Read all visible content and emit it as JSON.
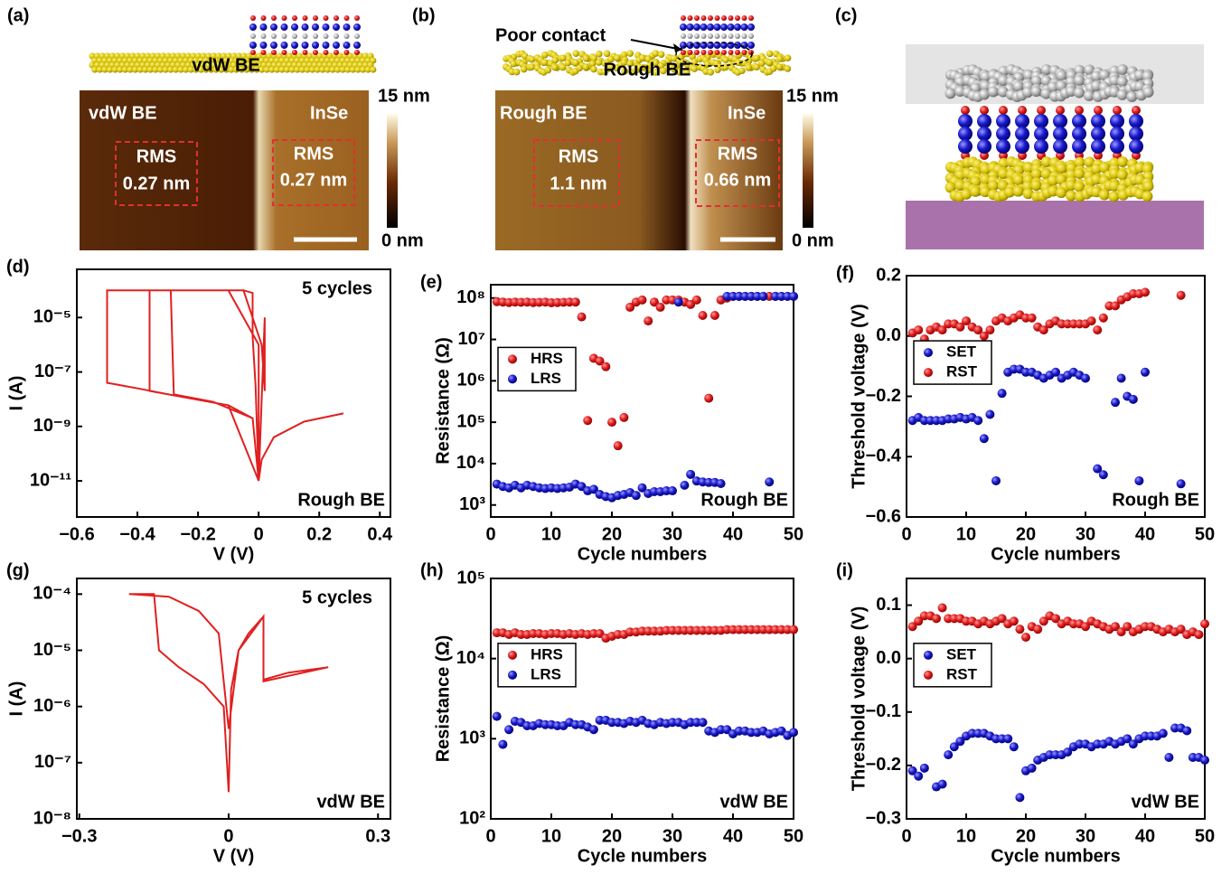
{
  "images": [
    {
      "panel_label": "(a)",
      "schematic_label": "vdW BE",
      "left_label": "vdW BE",
      "right_label": "InSe",
      "left_rms": "RMS",
      "left_rms_value": "0.27 nm",
      "right_rms": "RMS",
      "right_rms_value": "0.27 nm",
      "colorbar_max": "15 nm",
      "colorbar_min": "0 nm"
    },
    {
      "panel_label": "(b)",
      "annotation": "Poor contact",
      "schematic_label": "Rough BE",
      "left_label": "Rough BE",
      "right_label": "InSe",
      "left_rms": "RMS",
      "left_rms_value": "1.1 nm",
      "right_rms": "RMS",
      "right_rms_value": "0.66 nm",
      "colorbar_max": "15 nm",
      "colorbar_min": "0 nm"
    },
    {
      "panel_label": "(c)"
    }
  ],
  "chart_data": [
    {
      "type": "line",
      "panel_label": "(d)",
      "note_top": "5 cycles",
      "note_bottom": "Rough BE",
      "xlabel": "V (V)",
      "ylabel": "I (A)",
      "color": "#e02020",
      "yscale": "log",
      "x": [
        0.28,
        0.15,
        0.05,
        0.01,
        0,
        -0.02,
        -0.1,
        -0.25,
        -0.4,
        -0.5,
        -0.5,
        -0.2,
        -0.05,
        -0.02,
        -0.02,
        -0.01,
        0,
        -0.02,
        -0.15,
        -0.28,
        -0.29,
        -0.05,
        0.01,
        0.02,
        0.02,
        0,
        -0.1,
        -0.25,
        -0.36,
        -0.36,
        -0.1,
        0,
        0
      ],
      "values": [
        3e-09,
        1.5e-09,
        4e-10,
        6e-11,
        1e-11,
        2e-09,
        6e-09,
        1.2e-08,
        2.5e-08,
        4e-08,
        0.0001,
        0.0001,
        0.0001,
        8e-05,
        2e-06,
        3e-08,
        1e-11,
        2e-09,
        8e-09,
        1.5e-08,
        0.0001,
        0.0001,
        1e-06,
        2e-08,
        1e-05,
        1e-11,
        6e-09,
        1.2e-08,
        2e-08,
        0.0001,
        0.0001,
        1e-06,
        1e-11
      ],
      "xlim": [
        -0.6,
        0.435
      ],
      "xticks": [
        {
          "value": -0.6,
          "label": "−0.6"
        },
        {
          "value": -0.4,
          "label": "−0.4"
        },
        {
          "value": -0.2,
          "label": "−0.2"
        },
        0,
        0.2,
        0.4
      ],
      "ylim": [
        4.7e-13,
        0.00059
      ],
      "yticks": [
        {
          "value": 1e-11,
          "label": "10⁻¹¹"
        },
        {
          "value": 1e-09,
          "label": "10⁻⁹"
        },
        {
          "value": 1e-07,
          "label": "10⁻⁷"
        },
        {
          "value": 1e-05,
          "label": "10⁻⁵"
        }
      ]
    },
    {
      "type": "scatter",
      "panel_label": "(e)",
      "note_bottom": "Rough BE",
      "xlabel": "Cycle numbers",
      "ylabel": "Resistance (Ω)",
      "yscale": "log",
      "legend": "upper left",
      "x": [
        1,
        2,
        3,
        4,
        5,
        6,
        7,
        8,
        9,
        10,
        11,
        12,
        13,
        14,
        15,
        16,
        17,
        18,
        19,
        20,
        21,
        22,
        23,
        24,
        25,
        26,
        27,
        28,
        29,
        30,
        31,
        32,
        33,
        34,
        35,
        36,
        37,
        38,
        39,
        40,
        41,
        42,
        43,
        44,
        45,
        46,
        47,
        48,
        49,
        50
      ],
      "series": [
        {
          "name": "HRS",
          "color": "#e02020",
          "values": [
            82000000.0,
            80000000.0,
            78000000.0,
            80000000.0,
            79000000.0,
            80000000.0,
            78000000.0,
            79000000.0,
            80000000.0,
            77000000.0,
            78000000.0,
            79000000.0,
            80000000.0,
            80000000.0,
            35000000.0,
            110000.0,
            3500000.0,
            3000000.0,
            2200000.0,
            100000.0,
            27000.0,
            130000.0,
            60000000.0,
            80000000.0,
            90000000.0,
            28000000.0,
            80000000.0,
            60000000.0,
            90000000.0,
            90000000.0,
            90000000.0,
            80000000.0,
            70000000.0,
            90000000.0,
            38000000.0,
            380000.0,
            38000000.0,
            90000000.0,
            100000000.0,
            110000000.0,
            110000000.0,
            110000000.0,
            110000000.0,
            110000000.0,
            110000000.0,
            110000000.0,
            110000000.0,
            110000000.0,
            110000000.0,
            110000000.0
          ]
        },
        {
          "name": "LRS",
          "color": "#1a1acc",
          "values": [
            3200,
            2800,
            2600,
            3000,
            2600,
            3000,
            2800,
            2600,
            2500,
            2600,
            2500,
            2600,
            2700,
            3200,
            2800,
            2200,
            2400,
            1800,
            1600,
            1500,
            1700,
            1800,
            2000,
            1700,
            2600,
            1900,
            2100,
            2100,
            2200,
            2200,
            80000000.0,
            3000,
            5500,
            3800,
            3600,
            3500,
            3500,
            3300,
            110000000.0,
            110000000.0,
            110000000.0,
            110000000.0,
            110000000.0,
            110000000.0,
            110000000.0,
            3600,
            110000000.0,
            110000000.0,
            110000000.0,
            110000000.0
          ]
        }
      ],
      "xlim": [
        0,
        50
      ],
      "xticks": [
        0,
        10,
        20,
        30,
        40,
        50
      ],
      "ylim": [
        513,
        210000000.0
      ],
      "yticks": [
        {
          "value": 1000,
          "label": "10³"
        },
        {
          "value": 10000,
          "label": "10⁴"
        },
        {
          "value": 100000,
          "label": "10⁵"
        },
        {
          "value": 1000000,
          "label": "10⁶"
        },
        {
          "value": 10000000,
          "label": "10⁷"
        },
        {
          "value": 100000000,
          "label": "10⁸"
        }
      ]
    },
    {
      "type": "scatter",
      "panel_label": "(f)",
      "note_bottom": "Rough BE",
      "xlabel": "Cycle numbers",
      "ylabel": "Threshold voltage (V)",
      "legend": "upper left",
      "x": [
        1,
        2,
        3,
        4,
        5,
        6,
        7,
        8,
        9,
        10,
        11,
        12,
        13,
        14,
        15,
        16,
        17,
        18,
        19,
        20,
        21,
        22,
        23,
        24,
        25,
        26,
        27,
        28,
        29,
        30,
        31,
        32,
        33,
        34,
        35,
        36,
        37,
        38,
        39,
        40,
        41,
        42,
        43,
        44,
        45,
        46,
        47,
        48,
        49,
        50
      ],
      "series": [
        {
          "name": "SET",
          "color": "#1a1acc",
          "values": [
            -0.28,
            -0.27,
            -0.28,
            -0.28,
            -0.28,
            -0.28,
            -0.275,
            -0.275,
            -0.27,
            -0.275,
            -0.27,
            -0.28,
            -0.34,
            -0.26,
            -0.48,
            -0.19,
            -0.12,
            -0.11,
            -0.11,
            -0.12,
            -0.12,
            -0.13,
            -0.14,
            -0.13,
            -0.12,
            -0.14,
            -0.13,
            -0.12,
            -0.13,
            -0.14,
            null,
            -0.44,
            -0.46,
            null,
            -0.22,
            -0.14,
            -0.2,
            -0.21,
            -0.48,
            -0.12,
            null,
            null,
            null,
            null,
            null,
            -0.49,
            null,
            null,
            null,
            null
          ]
        },
        {
          "name": "RST",
          "color": "#e02020",
          "values": [
            0.01,
            0.02,
            -0.01,
            0.02,
            0.03,
            0.02,
            0.04,
            0.04,
            0.03,
            0.05,
            0.03,
            0.02,
            0,
            0.02,
            0.05,
            0.06,
            0.05,
            0.06,
            0.07,
            0.06,
            0.06,
            0.03,
            0.02,
            0.04,
            0.05,
            0.04,
            0.04,
            0.04,
            0.04,
            0.04,
            0.05,
            0.02,
            0.06,
            0.1,
            0.1,
            0.12,
            0.13,
            0.14,
            0.14,
            0.145,
            null,
            null,
            null,
            null,
            null,
            0.135,
            null,
            null,
            null,
            null
          ]
        }
      ],
      "xlim": [
        0,
        50
      ],
      "xticks": [
        0,
        10,
        20,
        30,
        40,
        50
      ],
      "ylim": [
        -0.6,
        0.2
      ],
      "yticks": [
        {
          "value": -0.6,
          "label": "−0.6"
        },
        {
          "value": -0.4,
          "label": "−0.4"
        },
        {
          "value": -0.2,
          "label": "−0.2"
        },
        {
          "value": 0,
          "label": "0.0"
        },
        0.2
      ]
    },
    {
      "type": "line",
      "panel_label": "(g)",
      "note_top": "5 cycles",
      "note_bottom": "vdW BE",
      "xlabel": "V (V)",
      "ylabel": "I (A)",
      "color": "#e02020",
      "yscale": "log",
      "x": [
        0.2,
        0.12,
        0.07,
        0.07,
        0.04,
        0.02,
        0.005,
        0,
        -0.01,
        -0.05,
        -0.1,
        -0.14,
        -0.15,
        -0.2,
        -0.12,
        -0.06,
        -0.02,
        0,
        0.02,
        0.06,
        0.07,
        0.07,
        0.2
      ],
      "values": [
        5e-06,
        4e-06,
        3e-06,
        4e-05,
        2e-05,
        1e-05,
        2e-06,
        3e-08,
        1e-06,
        2.5e-06,
        5e-06,
        1e-05,
        0.0001,
        0.0001,
        9e-05,
        5e-05,
        2e-05,
        4e-07,
        1e-05,
        3e-05,
        4e-05,
        2.8e-06,
        5e-06
      ],
      "xlim": [
        -0.305,
        0.325
      ],
      "xticks": [
        {
          "value": -0.3,
          "label": "−0.3"
        },
        0,
        0.3
      ],
      "ylim": [
        1e-08,
        0.00019
      ],
      "yticks": [
        {
          "value": 1e-08,
          "label": "10⁻⁸"
        },
        {
          "value": 1e-07,
          "label": "10⁻⁷"
        },
        {
          "value": 1e-06,
          "label": "10⁻⁶"
        },
        {
          "value": 1e-05,
          "label": "10⁻⁵"
        },
        {
          "value": 0.0001,
          "label": "10⁻⁴"
        }
      ]
    },
    {
      "type": "scatter",
      "panel_label": "(h)",
      "note_bottom": "vdW BE",
      "xlabel": "Cycle numbers",
      "ylabel": "Resistance (Ω)",
      "yscale": "log",
      "legend": "upper left",
      "x": [
        1,
        2,
        3,
        4,
        5,
        6,
        7,
        8,
        9,
        10,
        11,
        12,
        13,
        14,
        15,
        16,
        17,
        18,
        19,
        20,
        21,
        22,
        23,
        24,
        25,
        26,
        27,
        28,
        29,
        30,
        31,
        32,
        33,
        34,
        35,
        36,
        37,
        38,
        39,
        40,
        41,
        42,
        43,
        44,
        45,
        46,
        47,
        48,
        49,
        50
      ],
      "series": [
        {
          "name": "HRS",
          "color": "#e02020",
          "values": [
            21000,
            21000,
            20000,
            21000,
            20000,
            20000,
            20500,
            20500,
            20000,
            20500,
            20500,
            20000,
            20500,
            20000,
            20500,
            20000,
            20500,
            20500,
            18000,
            19000,
            20000,
            20000,
            21500,
            21500,
            22000,
            22000,
            22000,
            22000,
            22500,
            22500,
            22500,
            22500,
            22500,
            22500,
            22500,
            22500,
            22500,
            22500,
            23000,
            23000,
            23000,
            23000,
            23000,
            23000,
            23000,
            23000,
            23000,
            23000,
            23000,
            23000
          ]
        },
        {
          "name": "LRS",
          "color": "#1a1acc",
          "values": [
            1900,
            850,
            1300,
            1650,
            1600,
            1450,
            1450,
            1550,
            1500,
            1500,
            1450,
            1450,
            1600,
            1500,
            1500,
            1400,
            1300,
            1700,
            1700,
            1600,
            1600,
            1550,
            1650,
            1600,
            1700,
            1550,
            1500,
            1600,
            1550,
            1600,
            1600,
            1500,
            1600,
            1600,
            1600,
            1250,
            1200,
            1300,
            1300,
            1150,
            1250,
            1250,
            1200,
            1200,
            1250,
            1150,
            1200,
            1250,
            1100,
            1200
          ]
        }
      ],
      "xlim": [
        0,
        50
      ],
      "xticks": [
        0,
        10,
        20,
        30,
        40,
        50
      ],
      "ylim": [
        100,
        100000
      ],
      "yticks": [
        {
          "value": 100,
          "label": "10²"
        },
        {
          "value": 1000,
          "label": "10³"
        },
        {
          "value": 10000,
          "label": "10⁴"
        },
        {
          "value": 100000,
          "label": "10⁵"
        }
      ]
    },
    {
      "type": "scatter",
      "panel_label": "(i)",
      "note_bottom": "vdW BE",
      "xlabel": "Cycle numbers",
      "ylabel": "Threshold voltage (V)",
      "legend": "upper left",
      "x": [
        1,
        2,
        3,
        4,
        5,
        6,
        7,
        8,
        9,
        10,
        11,
        12,
        13,
        14,
        15,
        16,
        17,
        18,
        19,
        20,
        21,
        22,
        23,
        24,
        25,
        26,
        27,
        28,
        29,
        30,
        31,
        32,
        33,
        34,
        35,
        36,
        37,
        38,
        39,
        40,
        41,
        42,
        43,
        44,
        45,
        46,
        47,
        48,
        49,
        50
      ],
      "series": [
        {
          "name": "SET",
          "color": "#1a1acc",
          "values": [
            -0.21,
            -0.22,
            -0.205,
            null,
            -0.24,
            -0.235,
            -0.18,
            -0.165,
            -0.155,
            -0.145,
            -0.14,
            -0.14,
            -0.14,
            -0.145,
            -0.15,
            -0.15,
            -0.15,
            -0.165,
            -0.26,
            -0.21,
            -0.205,
            -0.19,
            -0.185,
            -0.18,
            -0.18,
            -0.18,
            -0.175,
            -0.165,
            -0.16,
            -0.16,
            -0.165,
            -0.16,
            -0.16,
            -0.155,
            -0.16,
            -0.155,
            -0.15,
            -0.16,
            -0.15,
            -0.145,
            -0.145,
            -0.145,
            -0.14,
            -0.185,
            -0.13,
            -0.13,
            -0.135,
            -0.185,
            -0.185,
            -0.19
          ]
        },
        {
          "name": "RST",
          "color": "#e02020",
          "values": [
            0.06,
            0.07,
            0.08,
            0.08,
            0.075,
            0.095,
            0.075,
            0.075,
            0.075,
            0.07,
            0.07,
            0.065,
            0.07,
            0.065,
            0.07,
            0.075,
            0.065,
            0.07,
            0.055,
            0.04,
            0.06,
            0.055,
            0.07,
            0.08,
            0.075,
            0.065,
            0.07,
            0.065,
            0.065,
            0.06,
            0.07,
            0.065,
            0.06,
            0.055,
            0.06,
            0.05,
            0.06,
            0.05,
            0.055,
            0.06,
            0.06,
            0.055,
            0.05,
            0.055,
            0.05,
            0.055,
            0.045,
            0.05,
            0.045,
            0.065
          ]
        }
      ],
      "xlim": [
        0,
        50
      ],
      "xticks": [
        0,
        10,
        20,
        30,
        40,
        50
      ],
      "ylim": [
        -0.3,
        0.15
      ],
      "yticks": [
        {
          "value": -0.3,
          "label": "−0.3"
        },
        {
          "value": -0.2,
          "label": "−0.2"
        },
        {
          "value": -0.1,
          "label": "−0.1"
        },
        {
          "value": 0,
          "label": "0.0"
        },
        0.1
      ]
    }
  ]
}
